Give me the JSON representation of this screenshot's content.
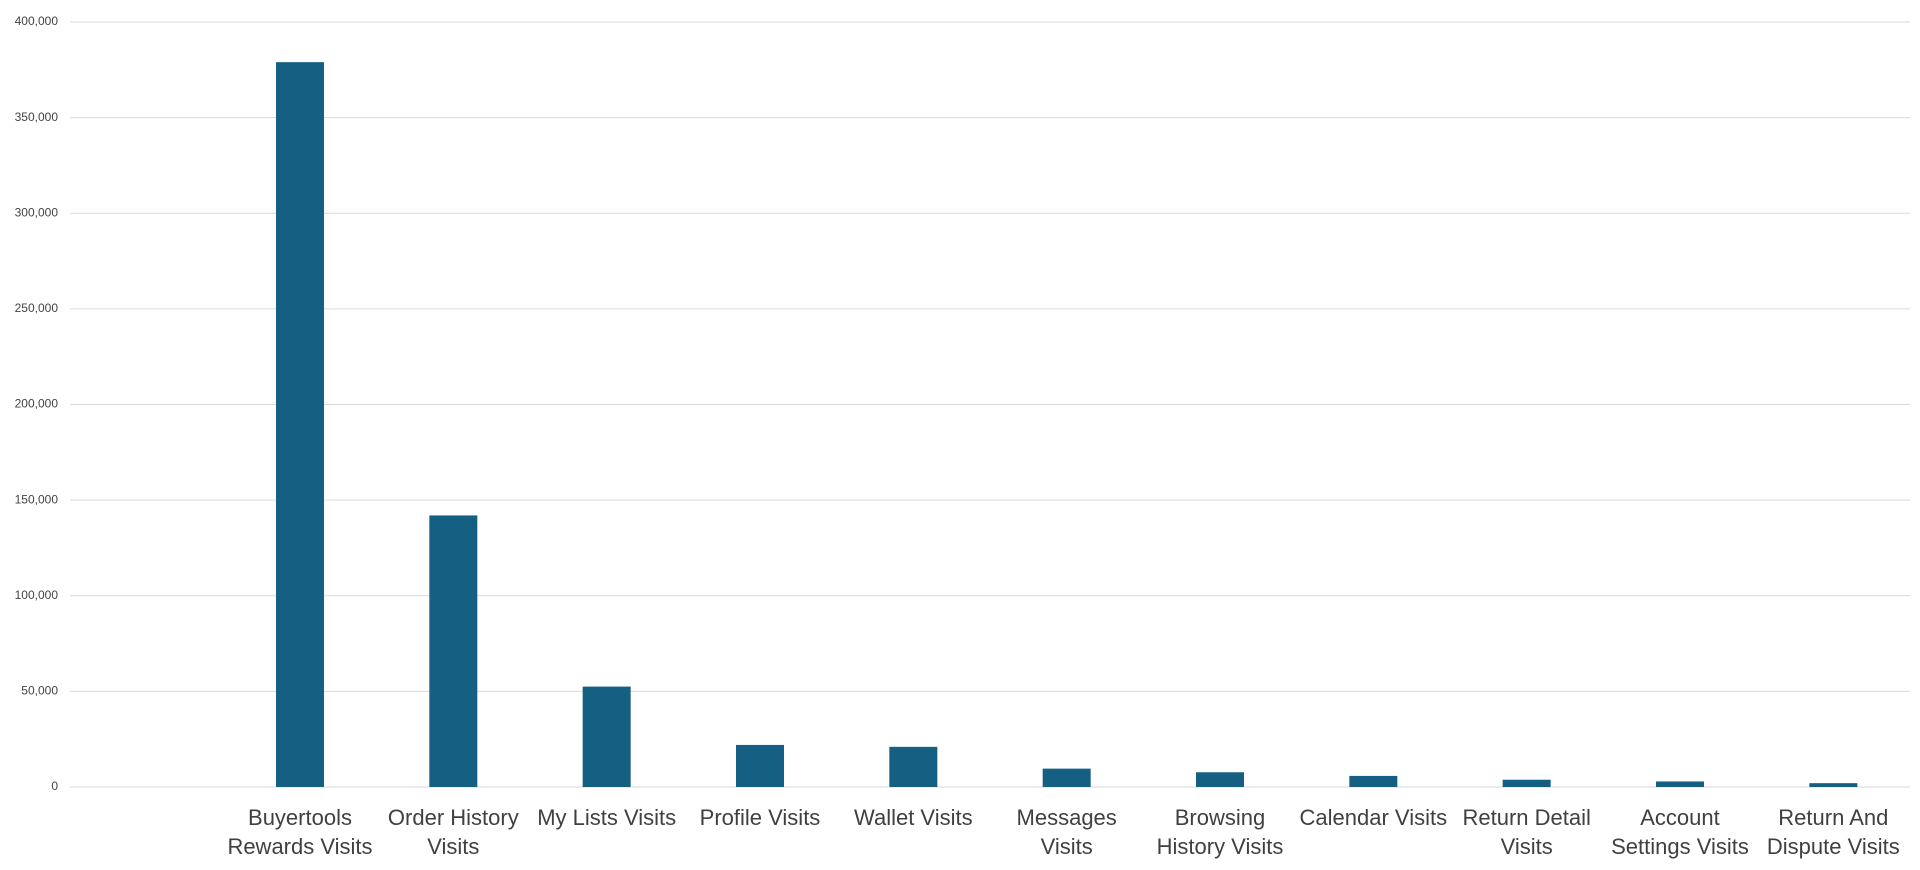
{
  "chart_data": {
    "type": "bar",
    "categories": [
      null,
      "Buyertools Rewards Visits",
      "Order History Visits",
      "My Lists Visits",
      "Profile Visits",
      "Wallet Visits",
      "Messages Visits",
      "Browsing History Visits",
      "Calendar Visits",
      "Return Detail Visits",
      "Account Settings Visits",
      "Return And Dispute Visits"
    ],
    "values": [
      null,
      379000,
      142000,
      52500,
      22000,
      21000,
      9600,
      7700,
      5800,
      3800,
      2900,
      2000
    ],
    "color": "#155f83",
    "ylim": [
      0,
      400000
    ],
    "yticks": [
      0,
      {
        "value": 50000,
        "label": "50,000"
      },
      {
        "value": 100000,
        "label": "100,000"
      },
      {
        "value": 150000,
        "label": "150,000"
      },
      {
        "value": 200000,
        "label": "200,000"
      },
      {
        "value": 250000,
        "label": "250,000"
      },
      {
        "value": 300000,
        "label": "300,000"
      },
      {
        "value": 350000,
        "label": "350,000"
      },
      {
        "value": 400000,
        "label": "400,000"
      }
    ],
    "grid": true
  }
}
